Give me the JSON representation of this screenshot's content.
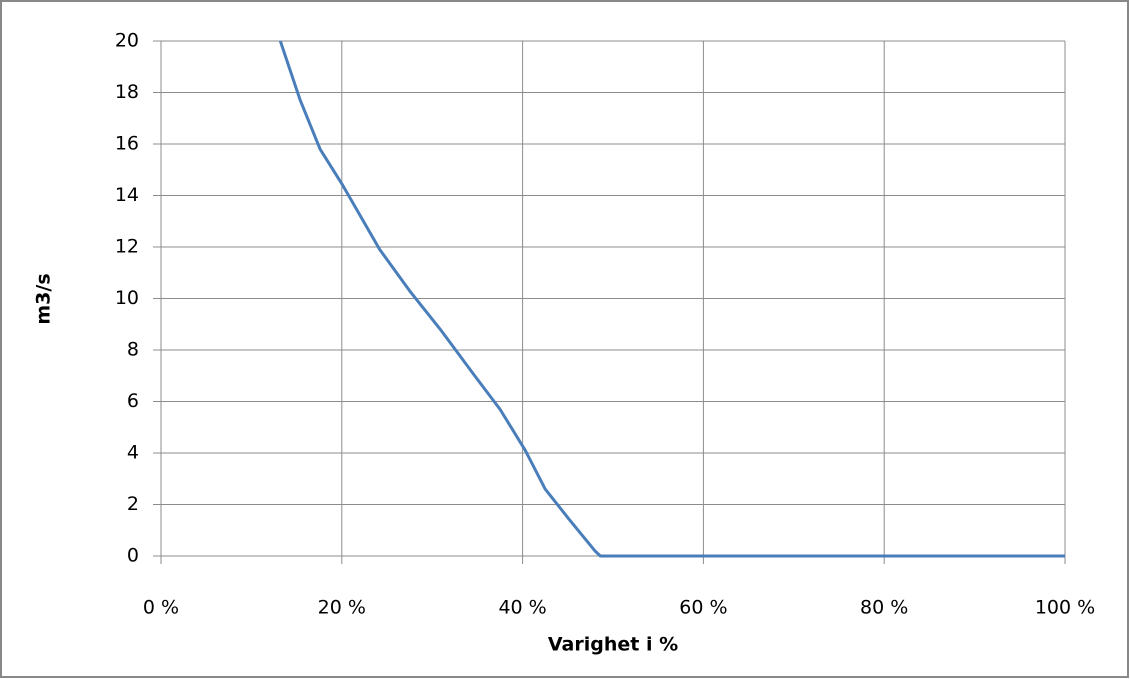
{
  "chart_data": {
    "type": "line",
    "x_label": "Varighet i %",
    "y_label": "m3/s",
    "x": [
      13.2,
      15.4,
      17.6,
      20.1,
      24.2,
      27.5,
      30.9,
      34.7,
      37.5,
      40.3,
      42.5,
      45.2,
      48.0,
      48.6,
      100
    ],
    "values": [
      20,
      17.7,
      15.8,
      14.4,
      11.9,
      10.3,
      8.8,
      7.0,
      5.7,
      4.1,
      2.6,
      1.4,
      0.2,
      0,
      0
    ],
    "color": "#4a7ebb",
    "xlim": [
      0,
      100
    ],
    "xticks": [
      {
        "value": 0,
        "label": "0 %"
      },
      {
        "value": 20,
        "label": "20 %"
      },
      {
        "value": 40,
        "label": "40 %"
      },
      {
        "value": 60,
        "label": "60 %"
      },
      {
        "value": 80,
        "label": "80 %"
      },
      {
        "value": 100,
        "label": "100 %"
      }
    ],
    "ylim": [
      0,
      20
    ],
    "yticks": [
      0,
      2,
      4,
      6,
      8,
      10,
      12,
      14,
      16,
      18,
      20
    ],
    "grid": true
  }
}
